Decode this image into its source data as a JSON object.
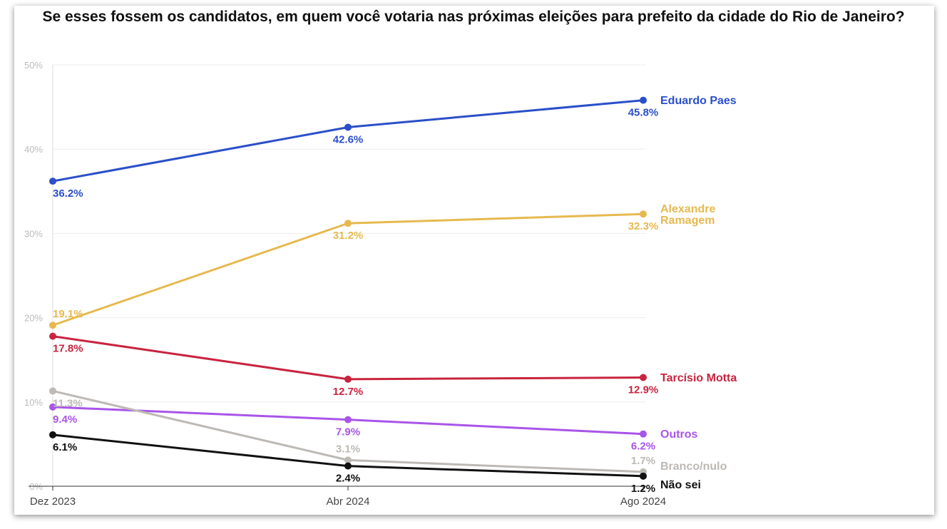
{
  "chart_data": {
    "type": "line",
    "title": "Se esses fossem os candidatos, em quem você votaria nas próximas eleições para prefeito da cidade do Rio de Janeiro?",
    "categories": [
      "Dez 2023",
      "Abr 2024",
      "Ago 2024"
    ],
    "ylim": [
      0,
      50
    ],
    "yticks": [
      "0%",
      "10%",
      "20%",
      "30%",
      "40%",
      "50%"
    ],
    "grid": true,
    "legend": "right-end labels",
    "series": [
      {
        "name": "Eduardo Paes",
        "color": "#2a4fc9",
        "values": [
          36.2,
          42.6,
          45.8
        ]
      },
      {
        "name": "Alexandre Ramagem",
        "color": "#e6b94f",
        "values": [
          19.1,
          31.2,
          32.3
        ]
      },
      {
        "name": "Tarcísio Motta",
        "color": "#c8243f",
        "values": [
          17.8,
          12.7,
          12.9
        ]
      },
      {
        "name": "Outros",
        "color": "#a855e8",
        "values": [
          9.4,
          7.9,
          6.2
        ]
      },
      {
        "name": "Branco/nulo",
        "color": "#bdb9b5",
        "values": [
          11.3,
          3.1,
          1.7
        ]
      },
      {
        "name": "Não sei",
        "color": "#111111",
        "values": [
          6.1,
          2.4,
          1.2
        ]
      }
    ]
  }
}
